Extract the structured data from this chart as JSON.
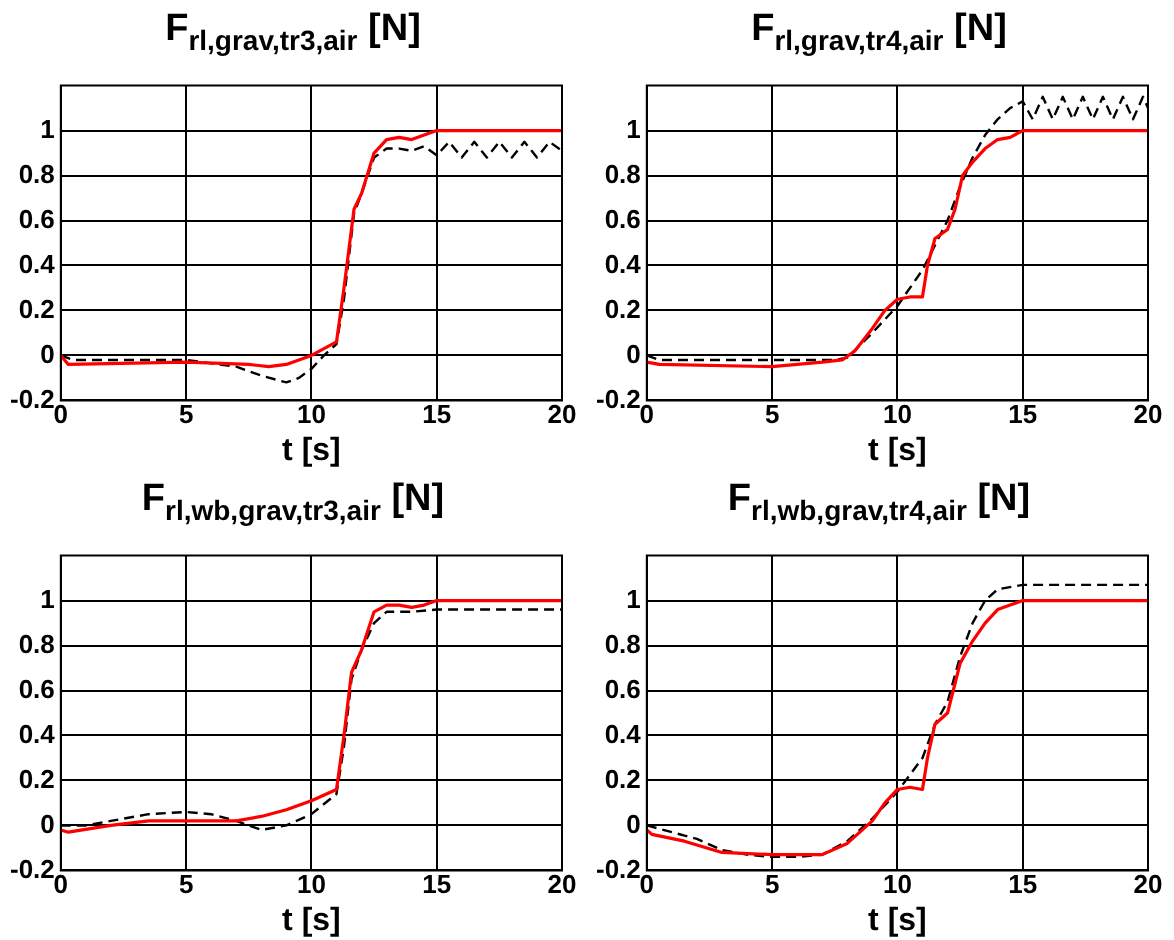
{
  "chart_data": [
    {
      "type": "line",
      "title": "F$_{rl,grav,tr3,air}$ [N]",
      "xlabel": "t [s]",
      "xlim": [
        0,
        20
      ],
      "xticks": [
        0,
        5,
        10,
        15,
        20
      ],
      "ylim": [
        -0.2,
        1.2
      ],
      "yticks": [
        -0.2,
        0,
        0.2,
        0.4,
        0.6,
        0.8,
        1
      ],
      "grid": true,
      "series": [
        {
          "color": "#000000",
          "line_style": "dashed",
          "x": [
            0,
            0.5,
            5,
            7,
            8,
            9,
            9.5,
            10,
            10.5,
            11,
            11.3,
            11.7,
            12,
            12.5,
            13,
            13.5,
            14,
            14.5,
            15,
            15.5,
            16,
            16.5,
            17,
            17.5,
            18,
            18.5,
            19,
            19.5,
            20
          ],
          "values": [
            0,
            -0.02,
            -0.02,
            -0.05,
            -0.09,
            -0.12,
            -0.1,
            -0.06,
            0,
            0.05,
            0.25,
            0.63,
            0.72,
            0.88,
            0.92,
            0.92,
            0.91,
            0.93,
            0.89,
            0.95,
            0.88,
            0.95,
            0.88,
            0.95,
            0.88,
            0.95,
            0.88,
            0.95,
            0.91
          ]
        },
        {
          "color": "#ff0000",
          "line_style": "solid",
          "x": [
            0,
            0.3,
            5,
            7.5,
            8.3,
            9,
            10,
            11,
            11.3,
            11.7,
            12,
            12.5,
            13,
            13.5,
            14,
            14.5,
            15,
            20
          ],
          "values": [
            0,
            -0.04,
            -0.03,
            -0.04,
            -0.05,
            -0.04,
            0,
            0.06,
            0.3,
            0.65,
            0.72,
            0.9,
            0.96,
            0.97,
            0.96,
            0.98,
            1,
            1
          ]
        }
      ]
    },
    {
      "type": "line",
      "title": "F$_{rl,grav,tr4,air}$ [N]",
      "xlabel": "t [s]",
      "xlim": [
        0,
        20
      ],
      "xticks": [
        0,
        5,
        10,
        15,
        20
      ],
      "ylim": [
        -0.2,
        1.2
      ],
      "yticks": [
        -0.2,
        0,
        0.2,
        0.4,
        0.6,
        0.8,
        1
      ],
      "grid": true,
      "series": [
        {
          "color": "#000000",
          "line_style": "dashed",
          "x": [
            0,
            0.5,
            5,
            7.5,
            8,
            9,
            10,
            11,
            12,
            12.5,
            13,
            13.5,
            14,
            14.5,
            15,
            15.4,
            15.8,
            16.2,
            16.6,
            17,
            17.4,
            17.8,
            18.2,
            18.6,
            19,
            19.4,
            19.8,
            20
          ],
          "values": [
            0,
            -0.02,
            -0.02,
            -0.02,
            -0.01,
            0.1,
            0.22,
            0.38,
            0.6,
            0.75,
            0.88,
            0.98,
            1.05,
            1.1,
            1.13,
            1.05,
            1.15,
            1.05,
            1.15,
            1.05,
            1.15,
            1.05,
            1.15,
            1.05,
            1.15,
            1.05,
            1.15,
            1.1
          ]
        },
        {
          "color": "#ff0000",
          "line_style": "solid",
          "x": [
            0,
            0.5,
            5,
            7,
            7.8,
            8.3,
            9,
            9.5,
            10,
            10.5,
            11,
            11.2,
            11.5,
            12,
            12.3,
            12.6,
            13,
            13.5,
            14,
            14.5,
            15,
            20
          ],
          "values": [
            -0.03,
            -0.04,
            -0.05,
            -0.03,
            -0.02,
            0.02,
            0.12,
            0.2,
            0.25,
            0.26,
            0.26,
            0.4,
            0.52,
            0.56,
            0.65,
            0.8,
            0.86,
            0.92,
            0.96,
            0.97,
            1,
            1
          ]
        }
      ]
    },
    {
      "type": "line",
      "title": "F$_{rl,wb,grav,tr3,air}$ [N]",
      "xlabel": "t [s]",
      "xlim": [
        0,
        20
      ],
      "xticks": [
        0,
        5,
        10,
        15,
        20
      ],
      "ylim": [
        -0.2,
        1.2
      ],
      "yticks": [
        -0.2,
        0,
        0.2,
        0.4,
        0.6,
        0.8,
        1
      ],
      "grid": true,
      "series": [
        {
          "color": "#000000",
          "line_style": "dashed",
          "x": [
            0,
            1,
            2,
            3.5,
            5,
            6,
            7,
            8,
            9,
            10,
            11,
            11.3,
            11.6,
            12,
            12.5,
            13,
            14,
            15,
            20
          ],
          "values": [
            0,
            0,
            0.02,
            0.05,
            0.06,
            0.05,
            0.02,
            -0.02,
            0,
            0.05,
            0.14,
            0.35,
            0.65,
            0.78,
            0.9,
            0.95,
            0.95,
            0.96,
            0.96
          ]
        },
        {
          "color": "#ff0000",
          "line_style": "solid",
          "x": [
            0,
            0.3,
            2,
            3.5,
            5,
            7,
            8,
            9,
            10,
            11,
            11.3,
            11.6,
            12,
            12.5,
            13,
            13.5,
            14,
            14.5,
            15,
            20
          ],
          "values": [
            -0.02,
            -0.03,
            0,
            0.02,
            0.02,
            0.02,
            0.04,
            0.07,
            0.11,
            0.16,
            0.4,
            0.68,
            0.78,
            0.95,
            0.98,
            0.98,
            0.97,
            0.98,
            1,
            1
          ]
        }
      ]
    },
    {
      "type": "line",
      "title": "F$_{rl,wb,grav,tr4,air}$ [N]",
      "xlabel": "t [s]",
      "xlim": [
        0,
        20
      ],
      "xticks": [
        0,
        5,
        10,
        15,
        20
      ],
      "ylim": [
        -0.2,
        1.2
      ],
      "yticks": [
        -0.2,
        0,
        0.2,
        0.4,
        0.6,
        0.8,
        1
      ],
      "grid": true,
      "series": [
        {
          "color": "#000000",
          "line_style": "dashed",
          "x": [
            0,
            1,
            2,
            3,
            4,
            5,
            6,
            7,
            8,
            9,
            10,
            11,
            11.5,
            12,
            12.5,
            13,
            13.5,
            14,
            15,
            20
          ],
          "values": [
            0,
            -0.03,
            -0.06,
            -0.11,
            -0.13,
            -0.14,
            -0.14,
            -0.13,
            -0.07,
            0.03,
            0.15,
            0.3,
            0.45,
            0.55,
            0.75,
            0.9,
            1,
            1.05,
            1.07,
            1.07
          ]
        },
        {
          "color": "#ff0000",
          "line_style": "solid",
          "x": [
            0,
            0.2,
            1.5,
            3,
            5,
            7,
            8,
            9,
            9.5,
            10,
            10.5,
            11,
            11.2,
            11.5,
            12,
            12.5,
            13,
            13.5,
            14,
            14.5,
            15,
            20
          ],
          "values": [
            -0.02,
            -0.04,
            -0.07,
            -0.12,
            -0.13,
            -0.13,
            -0.08,
            0.02,
            0.1,
            0.16,
            0.17,
            0.16,
            0.3,
            0.45,
            0.5,
            0.72,
            0.82,
            0.9,
            0.96,
            0.98,
            1,
            1
          ]
        }
      ]
    }
  ]
}
